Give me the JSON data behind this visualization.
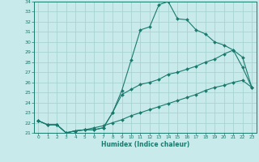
{
  "xlabel": "Humidex (Indice chaleur)",
  "bg_color": "#c8eaea",
  "line_color": "#1a7a6e",
  "grid_color": "#a8d4d0",
  "xlim": [
    -0.5,
    23.5
  ],
  "ylim": [
    21,
    34
  ],
  "xticks": [
    0,
    1,
    2,
    3,
    4,
    5,
    6,
    7,
    8,
    9,
    10,
    11,
    12,
    13,
    14,
    15,
    16,
    17,
    18,
    19,
    20,
    21,
    22,
    23
  ],
  "yticks": [
    21,
    22,
    23,
    24,
    25,
    26,
    27,
    28,
    29,
    30,
    31,
    32,
    33,
    34
  ],
  "line1_x": [
    0,
    1,
    2,
    3,
    4,
    5,
    6,
    7,
    8,
    9,
    10,
    11,
    12,
    13,
    14,
    15,
    16,
    17,
    18,
    19,
    20,
    21,
    22,
    23
  ],
  "line1_y": [
    22.2,
    21.8,
    21.8,
    21.0,
    21.2,
    21.3,
    21.3,
    21.5,
    23.0,
    25.2,
    28.2,
    31.2,
    31.5,
    33.7,
    34.0,
    32.3,
    32.2,
    31.2,
    30.8,
    30.0,
    29.7,
    29.2,
    27.5,
    25.5
  ],
  "line2_x": [
    0,
    1,
    2,
    3,
    4,
    5,
    6,
    7,
    8,
    9,
    10,
    11,
    12,
    13,
    14,
    15,
    16,
    17,
    18,
    19,
    20,
    21,
    22,
    23
  ],
  "line2_y": [
    22.2,
    21.8,
    21.8,
    21.0,
    21.2,
    21.3,
    21.3,
    21.5,
    23.0,
    24.8,
    25.3,
    25.8,
    26.0,
    26.3,
    26.8,
    27.0,
    27.3,
    27.6,
    28.0,
    28.3,
    28.8,
    29.2,
    28.5,
    25.5
  ],
  "line3_x": [
    0,
    1,
    2,
    3,
    4,
    5,
    6,
    7,
    8,
    9,
    10,
    11,
    12,
    13,
    14,
    15,
    16,
    17,
    18,
    19,
    20,
    21,
    22,
    23
  ],
  "line3_y": [
    22.2,
    21.8,
    21.8,
    21.0,
    21.2,
    21.3,
    21.5,
    21.7,
    22.0,
    22.3,
    22.7,
    23.0,
    23.3,
    23.6,
    23.9,
    24.2,
    24.5,
    24.8,
    25.2,
    25.5,
    25.7,
    26.0,
    26.2,
    25.5
  ]
}
